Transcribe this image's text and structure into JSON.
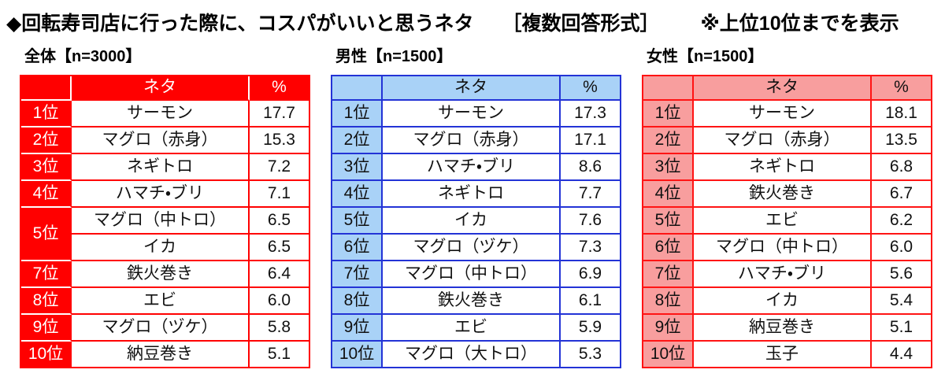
{
  "chart_data": {
    "type": "table",
    "title": "◆回転寿司店に行った際に、コスパがいいと思うネタ",
    "format_label": "［複数回答形式］",
    "note": "※上位10位までを表示",
    "columns": {
      "rank": "",
      "neta": "ネタ",
      "percent": "%"
    },
    "tables": [
      {
        "id": "overall",
        "label": "全体【n=3000】",
        "n": 3000,
        "theme": {
          "border": "#FF0000",
          "fill": "#FF0000",
          "fill_text": "#FFFFFF",
          "inner_separator": "#FFFFFF"
        },
        "rows": [
          {
            "rank": "1位",
            "neta": "サーモン",
            "percent": "17.7"
          },
          {
            "rank": "2位",
            "neta": "マグロ（赤身）",
            "percent": "15.3"
          },
          {
            "rank": "3位",
            "neta": "ネギトロ",
            "percent": "7.2"
          },
          {
            "rank": "4位",
            "neta": "ハマチ・ブリ",
            "percent": "7.1"
          },
          {
            "rank": "5位",
            "rowspan": 2,
            "neta": "マグロ（中トロ）",
            "percent": "6.5"
          },
          {
            "rank": null,
            "neta": "イカ",
            "percent": "6.5"
          },
          {
            "rank": "7位",
            "neta": "鉄火巻き",
            "percent": "6.4"
          },
          {
            "rank": "8位",
            "neta": "エビ",
            "percent": "6.0"
          },
          {
            "rank": "9位",
            "neta": "マグロ（ヅケ）",
            "percent": "5.8"
          },
          {
            "rank": "10位",
            "neta": "納豆巻き",
            "percent": "5.1"
          }
        ]
      },
      {
        "id": "male",
        "label": "男性【n=1500】",
        "n": 1500,
        "theme": {
          "border": "#2333D6",
          "fill": "#A9D2F7",
          "fill_text": "#111111",
          "inner_separator": "#2333D6"
        },
        "rows": [
          {
            "rank": "1位",
            "neta": "サーモン",
            "percent": "17.3"
          },
          {
            "rank": "2位",
            "neta": "マグロ（赤身）",
            "percent": "17.1"
          },
          {
            "rank": "3位",
            "neta": "ハマチ・ブリ",
            "percent": "8.6"
          },
          {
            "rank": "4位",
            "neta": "ネギトロ",
            "percent": "7.7"
          },
          {
            "rank": "5位",
            "neta": "イカ",
            "percent": "7.6"
          },
          {
            "rank": "6位",
            "neta": "マグロ（ヅケ）",
            "percent": "7.3"
          },
          {
            "rank": "7位",
            "neta": "マグロ（中トロ）",
            "percent": "6.9"
          },
          {
            "rank": "8位",
            "neta": "鉄火巻き",
            "percent": "6.1"
          },
          {
            "rank": "9位",
            "neta": "エビ",
            "percent": "5.9"
          },
          {
            "rank": "10位",
            "neta": "マグロ（大トロ）",
            "percent": "5.3"
          }
        ]
      },
      {
        "id": "female",
        "label": "女性【n=1500】",
        "n": 1500,
        "theme": {
          "border": "#FF1414",
          "fill": "#F89E9E",
          "fill_text": "#111111",
          "inner_separator": "#FF1414"
        },
        "rows": [
          {
            "rank": "1位",
            "neta": "サーモン",
            "percent": "18.1"
          },
          {
            "rank": "2位",
            "neta": "マグロ（赤身）",
            "percent": "13.5"
          },
          {
            "rank": "3位",
            "neta": "ネギトロ",
            "percent": "6.8"
          },
          {
            "rank": "4位",
            "neta": "鉄火巻き",
            "percent": "6.7"
          },
          {
            "rank": "5位",
            "neta": "エビ",
            "percent": "6.2"
          },
          {
            "rank": "6位",
            "neta": "マグロ（中トロ）",
            "percent": "6.0"
          },
          {
            "rank": "7位",
            "neta": "ハマチ・ブリ",
            "percent": "5.6"
          },
          {
            "rank": "8位",
            "neta": "イカ",
            "percent": "5.4"
          },
          {
            "rank": "9位",
            "neta": "納豆巻き",
            "percent": "5.1"
          },
          {
            "rank": "10位",
            "neta": "玉子",
            "percent": "4.4"
          }
        ]
      }
    ]
  }
}
